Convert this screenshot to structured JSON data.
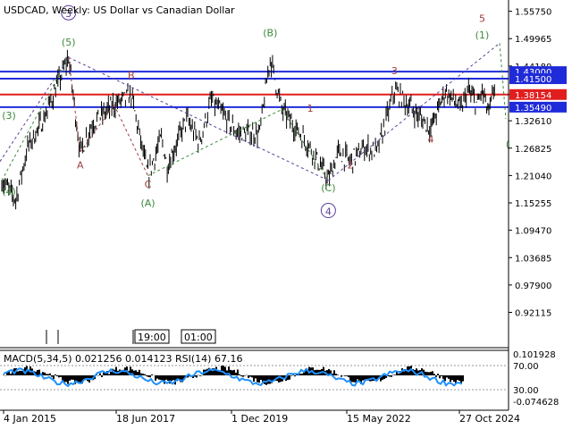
{
  "chart_data": {
    "type": "line",
    "title": "USDCAD, Weekly:  US Dollar vs Canadian Dollar",
    "price_axis": [
      "1.55750",
      "1.49965",
      "1.44180",
      "1.38154",
      "1.32610",
      "1.26825",
      "1.21040",
      "1.15255",
      "1.09470",
      "1.03685",
      "0.97900",
      "0.92115"
    ],
    "ylim": [
      0.89,
      1.57
    ],
    "x_ticks": [
      "4 Jan 2015",
      "18 Jun 2017",
      "1 Dec 2019",
      "15 May 2022",
      "27 Oct 2024"
    ],
    "x_range": [
      "2014-09-01",
      "2025-01-31"
    ],
    "series": [
      {
        "values": [
          [
            "2014-09-01",
            1.2
          ],
          [
            "2014-12-15",
            1.16
          ],
          [
            "2015-03-15",
            1.27
          ],
          [
            "2015-07-15",
            1.33
          ],
          [
            "2016-01-18",
            1.46
          ],
          [
            "2016-04-15",
            1.26
          ],
          [
            "2016-07-15",
            1.32
          ],
          [
            "2016-12-27",
            1.36
          ],
          [
            "2017-05-05",
            1.38
          ],
          [
            "2017-09-08",
            1.21
          ],
          [
            "2017-12-19",
            1.29
          ],
          [
            "2018-02-01",
            1.23
          ],
          [
            "2018-06-27",
            1.33
          ],
          [
            "2018-10-01",
            1.28
          ],
          [
            "2018-12-31",
            1.37
          ],
          [
            "2019-07-15",
            1.3
          ],
          [
            "2019-12-31",
            1.3
          ],
          [
            "2020-03-19",
            1.46
          ],
          [
            "2020-06-15",
            1.35
          ],
          [
            "2021-01-15",
            1.27
          ],
          [
            "2021-06-01",
            1.2
          ],
          [
            "2021-08-15",
            1.26
          ],
          [
            "2021-11-15",
            1.24
          ],
          [
            "2022-03-01",
            1.27
          ],
          [
            "2022-06-01",
            1.26
          ],
          [
            "2022-07-15",
            1.3
          ],
          [
            "2022-10-13",
            1.39
          ],
          [
            "2023-04-01",
            1.34
          ],
          [
            "2023-07-14",
            1.31
          ],
          [
            "2023-11-01",
            1.39
          ],
          [
            "2024-03-01",
            1.35
          ],
          [
            "2024-04-16",
            1.39
          ],
          [
            "2024-07-01",
            1.36
          ],
          [
            "2024-08-05",
            1.39
          ],
          [
            "2024-09-25",
            1.34
          ],
          [
            "2024-11-15",
            1.41
          ]
        ]
      }
    ],
    "levels": [
      {
        "label": "1.43000",
        "value": 1.43,
        "color": "#1f2bd9"
      },
      {
        "label": "1.41500",
        "value": 1.415,
        "color": "#1f2bd9"
      },
      {
        "label": "1.38154",
        "value": 1.38154,
        "color": "#e11d1d"
      },
      {
        "label": "1.35490",
        "value": 1.3549,
        "color": "#1f2bd9"
      }
    ],
    "wave_labels": [
      {
        "text": "(3)",
        "color": "#3c8a3c"
      },
      {
        "text": "3",
        "color": "#5a3c9a",
        "circled": true
      },
      {
        "text": "(5)",
        "color": "#3c8a3c"
      },
      {
        "text": "(4)",
        "color": "#3c8a3c"
      },
      {
        "text": "A",
        "color": "#9c3a3a"
      },
      {
        "text": "B",
        "color": "#9c3a3a"
      },
      {
        "text": "C",
        "color": "#9c3a3a"
      },
      {
        "text": "(A)",
        "color": "#3c8a3c"
      },
      {
        "text": "(B)",
        "color": "#3c8a3c"
      },
      {
        "text": "1",
        "color": "#9c3a3a"
      },
      {
        "text": "2",
        "color": "#9c3a3a"
      },
      {
        "text": "(C)",
        "color": "#3c8a3c"
      },
      {
        "text": "4",
        "color": "#5a3c9a",
        "circled": true
      },
      {
        "text": "3",
        "color": "#9c3a3a"
      },
      {
        "text": "4",
        "color": "#9c3a3a"
      },
      {
        "text": "5",
        "color": "#9c3a3a"
      },
      {
        "text": "(1)",
        "color": "#3c8a3c"
      },
      {
        "text": "(",
        "color": "#3c8a3c"
      }
    ],
    "time_boxes": [
      "19:00",
      "01:00"
    ],
    "indicator": {
      "label": "MACD(5,34,5) 0.021256 0.014123 RSI(14) 67.16",
      "axis": [
        "0.101928",
        "70.00",
        "30.00",
        "-0.074628"
      ]
    },
    "colors": {
      "histogram": "#000000",
      "rsi": "#1e90ff",
      "level_blue": "#1f2bd9",
      "level_red": "#e11d1d"
    }
  }
}
